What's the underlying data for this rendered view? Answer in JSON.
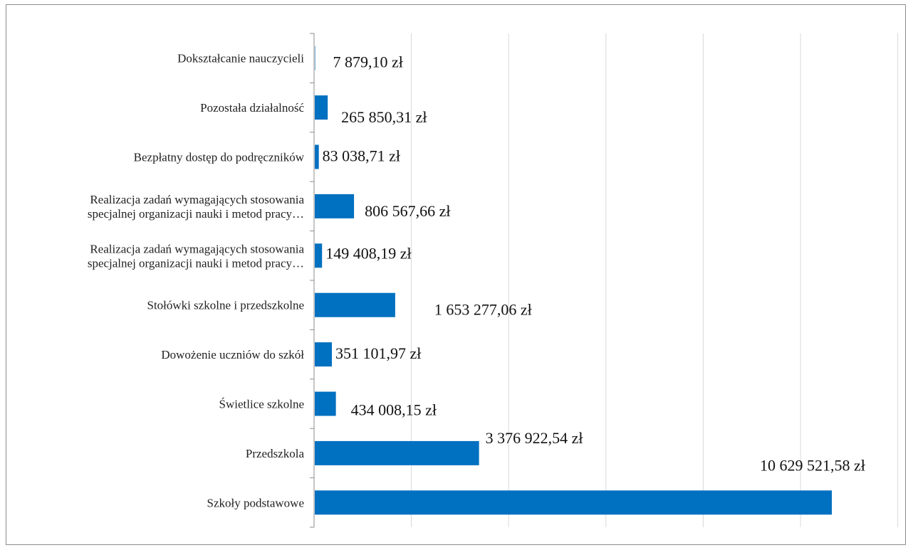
{
  "chart_data": {
    "type": "bar",
    "orientation": "horizontal",
    "title": "",
    "xlabel": "",
    "ylabel": "",
    "xlim": [
      0,
      12000000
    ],
    "x_gridlines": [
      0,
      2000000,
      4000000,
      6000000,
      8000000,
      10000000,
      12000000
    ],
    "x_tick_labels_shown": false,
    "grid": true,
    "legend": "none",
    "bar_color": "#0070C0",
    "categories": [
      "Dokształcanie nauczycieli",
      "Pozostała działalność",
      "Bezpłatny dostęp do podręczników",
      "Realizacja zadań wymagających stosowania specjalnej organizacji nauki i metod pracy…",
      "Realizacja zadań wymagających stosowania specjalnej organizacji nauki i metod pracy…",
      "Stołówki szkolne i przedszkolne",
      "Dowożenie uczniów do szkół",
      "Świetlice szkolne",
      "Przedszkola",
      "Szkoły podstawowe"
    ],
    "category_label_lines": [
      [
        "Dokształcanie nauczycieli"
      ],
      [
        "Pozostała działalność"
      ],
      [
        "Bezpłatny dostęp do podręczników"
      ],
      [
        "Realizacja zadań wymagających stosowania",
        "specjalnej organizacji nauki i metod pracy…"
      ],
      [
        "Realizacja zadań wymagających stosowania",
        "specjalnej organizacji nauki i metod pracy…"
      ],
      [
        "Stołówki szkolne i przedszkolne"
      ],
      [
        "Dowożenie uczniów do szkół"
      ],
      [
        "Świetlice szkolne"
      ],
      [
        "Przedszkola"
      ],
      [
        "Szkoły podstawowe"
      ]
    ],
    "values": [
      7879.1,
      265850.31,
      83038.71,
      806567.66,
      149408.19,
      1653277.06,
      351101.97,
      434008.15,
      3376922.54,
      10629521.58
    ],
    "value_labels": [
      "7 879,10 zł",
      "265 850,31 zł",
      "83 038,71 zł",
      "806 567,66 zł",
      "149 408,19 zł",
      "1 653 277,06 zł",
      "351 101,97 zł",
      "434 008,15 zł",
      "3 376 922,54 zł",
      "10 629 521,58 zł"
    ]
  }
}
